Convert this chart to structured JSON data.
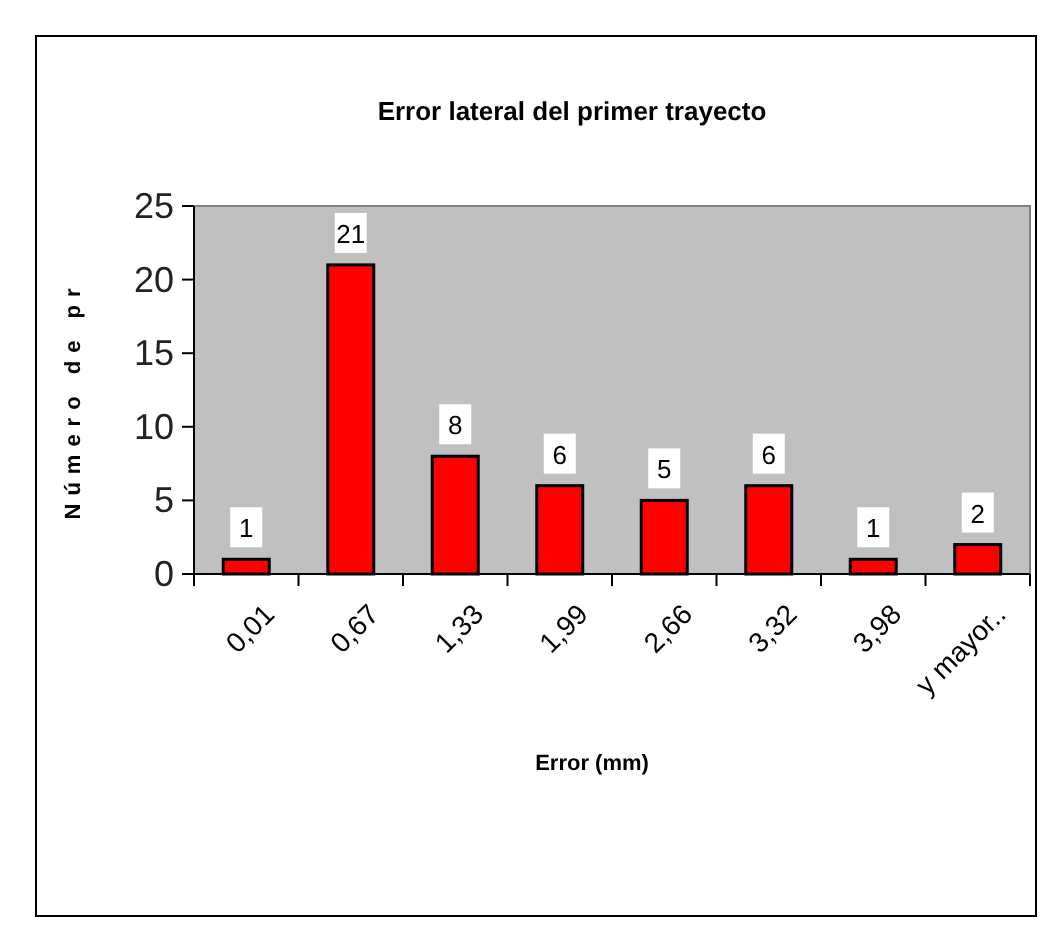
{
  "chart_data": {
    "type": "bar",
    "title": "Error lateral del primer trayecto",
    "xlabel": "Error (mm)",
    "ylabel": "Número de pr",
    "categories": [
      "0,01",
      "0,67",
      "1,33",
      "1,99",
      "2,66",
      "3,32",
      "3,98",
      "y mayor.."
    ],
    "values": [
      1,
      21,
      8,
      6,
      5,
      6,
      1,
      2
    ],
    "color": "#ff0000",
    "ylim": [
      0,
      25
    ],
    "yticks": [
      0,
      5,
      10,
      15,
      20,
      25
    ],
    "grid": false,
    "data_labels": true
  }
}
